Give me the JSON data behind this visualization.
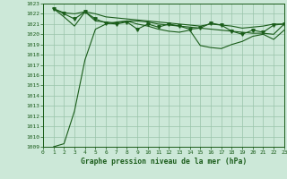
{
  "title": "Graphe pression niveau de la mer (hPa)",
  "xlim": [
    0,
    23
  ],
  "ylim": [
    1009,
    1023
  ],
  "xticks": [
    0,
    1,
    2,
    3,
    4,
    5,
    6,
    7,
    8,
    9,
    10,
    11,
    12,
    13,
    14,
    15,
    16,
    17,
    18,
    19,
    20,
    21,
    22,
    23
  ],
  "yticks": [
    1009,
    1010,
    1011,
    1012,
    1013,
    1014,
    1015,
    1016,
    1017,
    1018,
    1019,
    1020,
    1021,
    1022,
    1023
  ],
  "bg_color": "#cce8d8",
  "grid_color": "#99c4aa",
  "line_color": "#1a5c1a",
  "marker_color": "#1a5c1a",
  "series1_x": [
    1,
    2,
    3,
    4,
    5,
    6,
    7,
    8,
    9,
    10,
    11,
    12,
    13,
    14,
    15,
    16,
    17,
    18,
    19,
    20,
    21,
    22,
    23
  ],
  "series1_y": [
    1022.5,
    1022.1,
    1022.0,
    1022.2,
    1022.0,
    1021.7,
    1021.6,
    1021.5,
    1021.4,
    1021.3,
    1021.2,
    1021.1,
    1021.0,
    1020.9,
    1020.8,
    1021.0,
    1020.9,
    1020.8,
    1020.6,
    1020.7,
    1020.8,
    1021.0,
    1021.0
  ],
  "series2_x": [
    1,
    2,
    3,
    4,
    5,
    6,
    7,
    8,
    9,
    10,
    11,
    12,
    13,
    14,
    15,
    16,
    17,
    18,
    19,
    20,
    21,
    22,
    23
  ],
  "series2_y": [
    1022.5,
    1021.7,
    1020.8,
    1022.2,
    1021.3,
    1021.2,
    1021.1,
    1021.3,
    1021.0,
    1020.8,
    1020.5,
    1020.3,
    1020.2,
    1020.4,
    1018.9,
    1018.7,
    1018.6,
    1019.0,
    1019.3,
    1019.8,
    1020.0,
    1019.5,
    1020.4
  ],
  "series3_x": [
    1,
    2,
    3,
    4,
    5,
    6,
    7,
    8,
    9,
    10,
    11,
    12,
    13,
    14,
    15,
    16,
    17,
    18,
    19,
    20,
    21,
    22,
    23
  ],
  "series3_y": [
    1022.5,
    1022.0,
    1021.5,
    1022.2,
    1021.5,
    1021.1,
    1021.0,
    1021.2,
    1020.5,
    1021.0,
    1020.7,
    1021.0,
    1020.8,
    1020.5,
    1020.6,
    1021.1,
    1020.9,
    1020.3,
    1020.0,
    1020.4,
    1020.2,
    1020.9,
    1021.0
  ],
  "series4_x": [
    1,
    2,
    3,
    4,
    5,
    6,
    7,
    8,
    9,
    10,
    11,
    12,
    13,
    14,
    15,
    16,
    17,
    18,
    19,
    20,
    21,
    22,
    23
  ],
  "series4_y": [
    1009.0,
    1009.3,
    1012.5,
    1017.5,
    1020.5,
    1021.0,
    1021.2,
    1021.3,
    1021.3,
    1021.2,
    1021.0,
    1020.9,
    1020.8,
    1020.7,
    1020.6,
    1020.5,
    1020.4,
    1020.3,
    1020.2,
    1020.1,
    1020.1,
    1020.0,
    1021.0
  ]
}
